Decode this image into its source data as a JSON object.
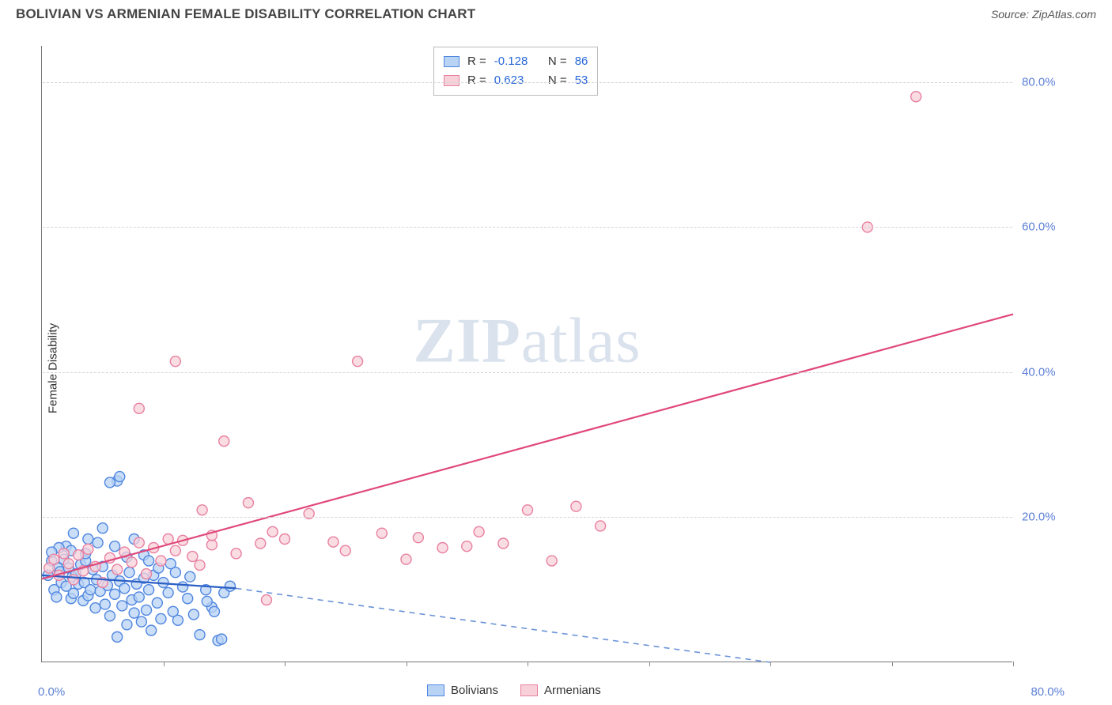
{
  "title": "BOLIVIAN VS ARMENIAN FEMALE DISABILITY CORRELATION CHART",
  "source_label": "Source: ZipAtlas.com",
  "ylabel": "Female Disability",
  "watermark": "ZIPatlas",
  "chart": {
    "type": "scatter",
    "xlim": [
      0,
      80
    ],
    "ylim": [
      0,
      85
    ],
    "x_origin_label": "0.0%",
    "x_max_label": "80.0%",
    "y_ticks": [
      20,
      40,
      60,
      80
    ],
    "y_tick_labels": [
      "20.0%",
      "40.0%",
      "60.0%",
      "80.0%"
    ],
    "x_minor_ticks": [
      10,
      20,
      30,
      40,
      50,
      60,
      70,
      80
    ],
    "grid_color": "#d5d5d5",
    "axis_color": "#777777",
    "background_color": "#ffffff",
    "tick_label_color": "#5b7fd6",
    "marker_radius": 6.5,
    "marker_stroke_width": 1.4,
    "series": [
      {
        "name": "Bolivians",
        "marker_fill": "#b9d3f4",
        "marker_stroke": "#4f86e0",
        "trend_color": "#2b5fc4",
        "trend_dash_color": "#6a93d8",
        "R": "-0.128",
        "N": "86",
        "trend_solid": {
          "x1": 0,
          "y1": 12.0,
          "x2": 16,
          "y2": 10.2
        },
        "trend_dash": {
          "x1": 16,
          "y1": 10.2,
          "x2": 60,
          "y2": 0.0
        },
        "points": [
          [
            0.5,
            12
          ],
          [
            0.8,
            14
          ],
          [
            1.0,
            10
          ],
          [
            1.2,
            9
          ],
          [
            1.3,
            13
          ],
          [
            1.5,
            12.5
          ],
          [
            1.6,
            11
          ],
          [
            1.8,
            14.2
          ],
          [
            2.0,
            10.5
          ],
          [
            2.2,
            13
          ],
          [
            2.4,
            8.8
          ],
          [
            2.5,
            11.8
          ],
          [
            2.6,
            9.5
          ],
          [
            2.8,
            12.2
          ],
          [
            3.0,
            10.8
          ],
          [
            3.2,
            13.5
          ],
          [
            3.4,
            8.5
          ],
          [
            3.5,
            11
          ],
          [
            3.6,
            14
          ],
          [
            3.8,
            9.2
          ],
          [
            4.0,
            10
          ],
          [
            4.2,
            12.8
          ],
          [
            4.4,
            7.5
          ],
          [
            4.5,
            11.4
          ],
          [
            4.8,
            9.8
          ],
          [
            5.0,
            13.2
          ],
          [
            5.2,
            8
          ],
          [
            5.4,
            10.6
          ],
          [
            5.6,
            6.4
          ],
          [
            5.8,
            12
          ],
          [
            6.0,
            9.4
          ],
          [
            6.2,
            3.5
          ],
          [
            6.4,
            11.2
          ],
          [
            6.6,
            7.8
          ],
          [
            6.8,
            10.2
          ],
          [
            7.0,
            5.2
          ],
          [
            7.2,
            12.4
          ],
          [
            7.4,
            8.6
          ],
          [
            7.6,
            6.8
          ],
          [
            7.8,
            10.8
          ],
          [
            8.0,
            9
          ],
          [
            8.2,
            5.6
          ],
          [
            8.4,
            11.6
          ],
          [
            8.6,
            7.2
          ],
          [
            8.8,
            10
          ],
          [
            9.0,
            4.4
          ],
          [
            9.2,
            12
          ],
          [
            9.5,
            8.2
          ],
          [
            9.8,
            6
          ],
          [
            10.0,
            11
          ],
          [
            10.4,
            9.6
          ],
          [
            10.8,
            7
          ],
          [
            11.2,
            5.8
          ],
          [
            11.6,
            10.4
          ],
          [
            12.0,
            8.8
          ],
          [
            12.5,
            6.6
          ],
          [
            13.0,
            3.8
          ],
          [
            13.5,
            10
          ],
          [
            14.0,
            7.6
          ],
          [
            14.5,
            3.0
          ],
          [
            15.0,
            9.6
          ],
          [
            15.5,
            10.5
          ],
          [
            5.0,
            18.5
          ],
          [
            6.2,
            25
          ],
          [
            6.4,
            25.6
          ],
          [
            5.6,
            24.8
          ],
          [
            3.8,
            17.0
          ],
          [
            4.6,
            16.5
          ],
          [
            2.0,
            16.0
          ],
          [
            2.4,
            15.4
          ],
          [
            1.4,
            15.8
          ],
          [
            0.8,
            15.2
          ],
          [
            2.6,
            17.8
          ],
          [
            3.6,
            15.0
          ],
          [
            7.0,
            14.5
          ],
          [
            8.4,
            14.8
          ],
          [
            9.6,
            13.0
          ],
          [
            11.0,
            12.4
          ],
          [
            12.2,
            11.8
          ],
          [
            13.6,
            8.4
          ],
          [
            14.2,
            7.0
          ],
          [
            14.8,
            3.2
          ],
          [
            7.6,
            17.0
          ],
          [
            6.0,
            16.0
          ],
          [
            8.8,
            14.0
          ],
          [
            10.6,
            13.6
          ]
        ]
      },
      {
        "name": "Armenians",
        "marker_fill": "#f8d0da",
        "marker_stroke": "#e880a0",
        "trend_color": "#e0487a",
        "trend_dash_color": "#e0487a",
        "R": "0.623",
        "N": "53",
        "trend_solid": {
          "x1": 0,
          "y1": 11.5,
          "x2": 80,
          "y2": 48
        },
        "trend_dash": null,
        "points": [
          [
            0.6,
            13
          ],
          [
            1.0,
            14.2
          ],
          [
            1.4,
            12.0
          ],
          [
            1.8,
            15.0
          ],
          [
            2.2,
            13.6
          ],
          [
            2.6,
            11.4
          ],
          [
            3.0,
            14.8
          ],
          [
            3.4,
            12.6
          ],
          [
            3.8,
            15.6
          ],
          [
            4.4,
            13.2
          ],
          [
            5.0,
            11.0
          ],
          [
            5.6,
            14.4
          ],
          [
            6.2,
            12.8
          ],
          [
            6.8,
            15.2
          ],
          [
            7.4,
            13.8
          ],
          [
            8.0,
            16.5
          ],
          [
            8.6,
            12.2
          ],
          [
            9.2,
            15.8
          ],
          [
            9.8,
            14.0
          ],
          [
            10.4,
            17.0
          ],
          [
            11.0,
            15.4
          ],
          [
            11.6,
            16.8
          ],
          [
            12.4,
            14.6
          ],
          [
            13.2,
            21.0
          ],
          [
            14.0,
            16.2
          ],
          [
            15.0,
            30.5
          ],
          [
            16.0,
            15.0
          ],
          [
            17.0,
            22.0
          ],
          [
            18.0,
            16.4
          ],
          [
            18.5,
            8.6
          ],
          [
            20.0,
            17.0
          ],
          [
            22.0,
            20.5
          ],
          [
            24.0,
            16.6
          ],
          [
            26.0,
            41.5
          ],
          [
            28.0,
            17.8
          ],
          [
            30.0,
            14.2
          ],
          [
            31.0,
            17.2
          ],
          [
            33.0,
            15.8
          ],
          [
            35.0,
            16.0
          ],
          [
            36.0,
            18.0
          ],
          [
            38.0,
            16.4
          ],
          [
            40.0,
            21.0
          ],
          [
            42.0,
            14.0
          ],
          [
            44.0,
            21.5
          ],
          [
            46.0,
            18.8
          ],
          [
            8.0,
            35.0
          ],
          [
            11.0,
            41.5
          ],
          [
            68.0,
            60.0
          ],
          [
            72.0,
            78.0
          ],
          [
            14.0,
            17.5
          ],
          [
            13.0,
            13.4
          ],
          [
            19.0,
            18.0
          ],
          [
            25.0,
            15.4
          ]
        ]
      }
    ],
    "legend": {
      "bg": "#ffffff",
      "border": "#bbbbbb",
      "text_color": "#333333",
      "value_color": "#2968d9"
    },
    "bottom_legend": [
      "Bolivians",
      "Armenians"
    ]
  }
}
